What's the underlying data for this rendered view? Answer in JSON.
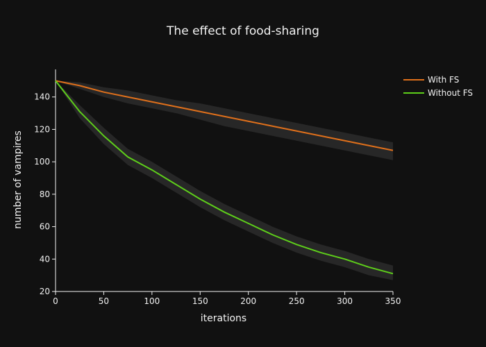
{
  "chart_data": {
    "type": "line",
    "title": "The effect of food-sharing",
    "xlabel": "iterations",
    "ylabel": "number of vampires",
    "xlim": [
      0,
      350
    ],
    "ylim": [
      20,
      157
    ],
    "xticks": [
      0,
      50,
      100,
      150,
      200,
      250,
      300,
      350
    ],
    "yticks": [
      20,
      40,
      60,
      80,
      100,
      120,
      140
    ],
    "grid": false,
    "legend": "top-right",
    "x": [
      0,
      25,
      50,
      75,
      100,
      125,
      150,
      175,
      200,
      225,
      250,
      275,
      300,
      325,
      350
    ],
    "series": [
      {
        "name": "With FS",
        "color": "#e0701b",
        "values": [
          150,
          147,
          143,
          140,
          137,
          134,
          131,
          128,
          125,
          122,
          119,
          116,
          113,
          110,
          107
        ],
        "band_lower": [
          150,
          145,
          140,
          136,
          133,
          130,
          126,
          122,
          119,
          116,
          113,
          110,
          107,
          104,
          101
        ],
        "band_upper": [
          150,
          149,
          146,
          144,
          141,
          138,
          136,
          133,
          130,
          127,
          124,
          121,
          118,
          115,
          112
        ]
      },
      {
        "name": "Without FS",
        "color": "#5ecf1a",
        "values": [
          150,
          131,
          116,
          103,
          95,
          86,
          77,
          69,
          62,
          55,
          49,
          44,
          40,
          35,
          31
        ],
        "band_lower": [
          150,
          127,
          111,
          98,
          90,
          81,
          72,
          64,
          57,
          50,
          44,
          39,
          35,
          30,
          27
        ],
        "band_upper": [
          150,
          135,
          121,
          108,
          100,
          91,
          82,
          74,
          67,
          60,
          54,
          49,
          45,
          40,
          36
        ]
      }
    ],
    "colors": {
      "background": "#111111",
      "band": "#2a2a2a",
      "axis": "#f2f2f2"
    }
  }
}
